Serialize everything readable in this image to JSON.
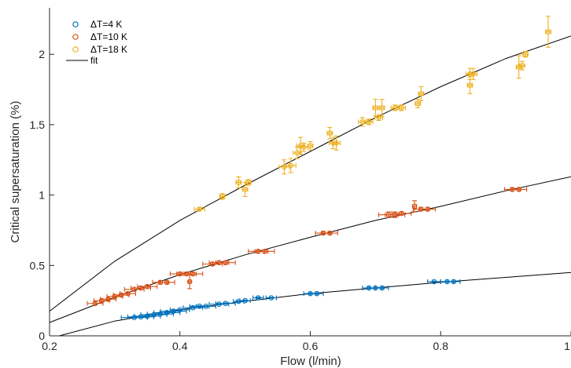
{
  "chart_data": {
    "type": "scatter",
    "xlabel": "Flow (l/min)",
    "ylabel": "Critical supersaturation (%)",
    "xlim": [
      0.2,
      1.0
    ],
    "ylim": [
      0,
      2.33
    ],
    "x_ticks": [
      0.2,
      0.4,
      0.6,
      0.8,
      1.0
    ],
    "x_tick_labels": [
      "0.2",
      "0.4",
      "0.6",
      "0.8",
      "1"
    ],
    "y_ticks": [
      0,
      0.5,
      1,
      1.5,
      2
    ],
    "y_tick_labels": [
      "0",
      "0.5",
      "1",
      "1.5",
      "2"
    ],
    "grid": false,
    "legend_position": "top-left",
    "series": [
      {
        "name": "ΔT=4 K",
        "color": "#0072BD",
        "marker": "circle",
        "points": [
          [
            0.33,
            0.13,
            0.02,
            0.004
          ],
          [
            0.34,
            0.135,
            0.02,
            0.004
          ],
          [
            0.35,
            0.14,
            0.02,
            0.004
          ],
          [
            0.36,
            0.15,
            0.02,
            0.004
          ],
          [
            0.37,
            0.155,
            0.02,
            0.004
          ],
          [
            0.38,
            0.165,
            0.02,
            0.004
          ],
          [
            0.39,
            0.175,
            0.02,
            0.004
          ],
          [
            0.4,
            0.185,
            0.015,
            0.004
          ],
          [
            0.42,
            0.2,
            0.015,
            0.004
          ],
          [
            0.43,
            0.21,
            0.015,
            0.004
          ],
          [
            0.44,
            0.21,
            0.015,
            0.004
          ],
          [
            0.46,
            0.225,
            0.015,
            0.004
          ],
          [
            0.47,
            0.23,
            0.015,
            0.004
          ],
          [
            0.49,
            0.245,
            0.008,
            0.004
          ],
          [
            0.5,
            0.25,
            0.008,
            0.004
          ],
          [
            0.52,
            0.27,
            0.008,
            0.005
          ],
          [
            0.54,
            0.27,
            0.008,
            0.004
          ],
          [
            0.6,
            0.3,
            0.01,
            0.004
          ],
          [
            0.61,
            0.3,
            0.01,
            0.004
          ],
          [
            0.69,
            0.34,
            0.01,
            0.004
          ],
          [
            0.7,
            0.34,
            0.01,
            0.004
          ],
          [
            0.71,
            0.34,
            0.01,
            0.004
          ],
          [
            0.79,
            0.385,
            0.01,
            0.004
          ],
          [
            0.81,
            0.385,
            0.01,
            0.004
          ],
          [
            0.82,
            0.385,
            0.01,
            0.004
          ]
        ]
      },
      {
        "name": "ΔT=10 K",
        "color": "#D95319",
        "marker": "circle",
        "points": [
          [
            0.27,
            0.23,
            0.012,
            0.01
          ],
          [
            0.28,
            0.25,
            0.012,
            0.01
          ],
          [
            0.29,
            0.26,
            0.012,
            0.01
          ],
          [
            0.3,
            0.28,
            0.012,
            0.01
          ],
          [
            0.31,
            0.29,
            0.012,
            0.01
          ],
          [
            0.32,
            0.3,
            0.012,
            0.01
          ],
          [
            0.33,
            0.33,
            0.015,
            0.01
          ],
          [
            0.34,
            0.34,
            0.015,
            0.01
          ],
          [
            0.35,
            0.35,
            0.015,
            0.01
          ],
          [
            0.37,
            0.38,
            0.012,
            0.01
          ],
          [
            0.38,
            0.38,
            0.012,
            0.01
          ],
          [
            0.4,
            0.44,
            0.015,
            0.01
          ],
          [
            0.41,
            0.44,
            0.015,
            0.01
          ],
          [
            0.42,
            0.44,
            0.015,
            0.01
          ],
          [
            0.415,
            0.385,
            0.002,
            0.05
          ],
          [
            0.45,
            0.51,
            0.015,
            0.01
          ],
          [
            0.46,
            0.52,
            0.015,
            0.01
          ],
          [
            0.47,
            0.52,
            0.015,
            0.01
          ],
          [
            0.52,
            0.6,
            0.015,
            0.01
          ],
          [
            0.53,
            0.6,
            0.015,
            0.01
          ],
          [
            0.62,
            0.73,
            0.012,
            0.01
          ],
          [
            0.63,
            0.73,
            0.012,
            0.01
          ],
          [
            0.72,
            0.86,
            0.015,
            0.02
          ],
          [
            0.73,
            0.86,
            0.015,
            0.02
          ],
          [
            0.74,
            0.87,
            0.015,
            0.01
          ],
          [
            0.76,
            0.92,
            0.003,
            0.04
          ],
          [
            0.77,
            0.9,
            0.012,
            0.01
          ],
          [
            0.78,
            0.9,
            0.012,
            0.01
          ],
          [
            0.91,
            1.04,
            0.012,
            0.01
          ],
          [
            0.92,
            1.04,
            0.012,
            0.01
          ]
        ]
      },
      {
        "name": "ΔT=18 K",
        "color": "#EDB120",
        "marker": "circle",
        "points": [
          [
            0.43,
            0.9,
            0.008,
            0.01
          ],
          [
            0.465,
            0.99,
            0.004,
            0.02
          ],
          [
            0.49,
            1.09,
            0.004,
            0.04
          ],
          [
            0.5,
            1.04,
            0.004,
            0.05
          ],
          [
            0.505,
            1.09,
            0.004,
            0.02
          ],
          [
            0.56,
            1.2,
            0.008,
            0.05
          ],
          [
            0.57,
            1.21,
            0.008,
            0.05
          ],
          [
            0.58,
            1.3,
            0.006,
            0.04
          ],
          [
            0.585,
            1.35,
            0.006,
            0.06
          ],
          [
            0.59,
            1.34,
            0.006,
            0.03
          ],
          [
            0.6,
            1.35,
            0.004,
            0.03
          ],
          [
            0.63,
            1.44,
            0.004,
            0.04
          ],
          [
            0.635,
            1.37,
            0.006,
            0.04
          ],
          [
            0.64,
            1.37,
            0.006,
            0.05
          ],
          [
            0.68,
            1.52,
            0.006,
            0.03
          ],
          [
            0.69,
            1.52,
            0.006,
            0.02
          ],
          [
            0.7,
            1.62,
            0.004,
            0.06
          ],
          [
            0.705,
            1.55,
            0.006,
            0.02
          ],
          [
            0.71,
            1.62,
            0.004,
            0.06
          ],
          [
            0.73,
            1.62,
            0.006,
            0.02
          ],
          [
            0.74,
            1.62,
            0.006,
            0.02
          ],
          [
            0.765,
            1.65,
            0.004,
            0.03
          ],
          [
            0.77,
            1.72,
            0.004,
            0.05
          ],
          [
            0.845,
            1.86,
            0.006,
            0.04
          ],
          [
            0.845,
            1.78,
            0.004,
            0.06
          ],
          [
            0.85,
            1.86,
            0.006,
            0.04
          ],
          [
            0.92,
            1.91,
            0.004,
            0.08
          ],
          [
            0.925,
            1.92,
            0.004,
            0.03
          ],
          [
            0.93,
            2.0,
            0.004,
            0.02
          ],
          [
            0.965,
            2.16,
            0.004,
            0.11
          ]
        ]
      },
      {
        "name": "fit",
        "color": "#000000",
        "marker": "line",
        "lines": [
          [
            [
              0.2,
              0.175
            ],
            [
              0.3,
              0.53
            ],
            [
              0.4,
              0.82
            ],
            [
              0.5,
              1.07
            ],
            [
              0.6,
              1.31
            ],
            [
              0.7,
              1.55
            ],
            [
              0.8,
              1.77
            ],
            [
              0.9,
              1.97
            ],
            [
              1.0,
              2.13
            ]
          ],
          [
            [
              0.2,
              0.095
            ],
            [
              0.3,
              0.275
            ],
            [
              0.4,
              0.435
            ],
            [
              0.5,
              0.575
            ],
            [
              0.6,
              0.7
            ],
            [
              0.7,
              0.82
            ],
            [
              0.8,
              0.92
            ],
            [
              0.9,
              1.03
            ],
            [
              1.0,
              1.13
            ]
          ],
          [
            [
              0.215,
              0.0
            ],
            [
              0.3,
              0.105
            ],
            [
              0.4,
              0.185
            ],
            [
              0.5,
              0.245
            ],
            [
              0.6,
              0.3
            ],
            [
              0.7,
              0.34
            ],
            [
              0.8,
              0.38
            ],
            [
              0.9,
              0.415
            ],
            [
              1.0,
              0.45
            ]
          ]
        ]
      }
    ]
  }
}
